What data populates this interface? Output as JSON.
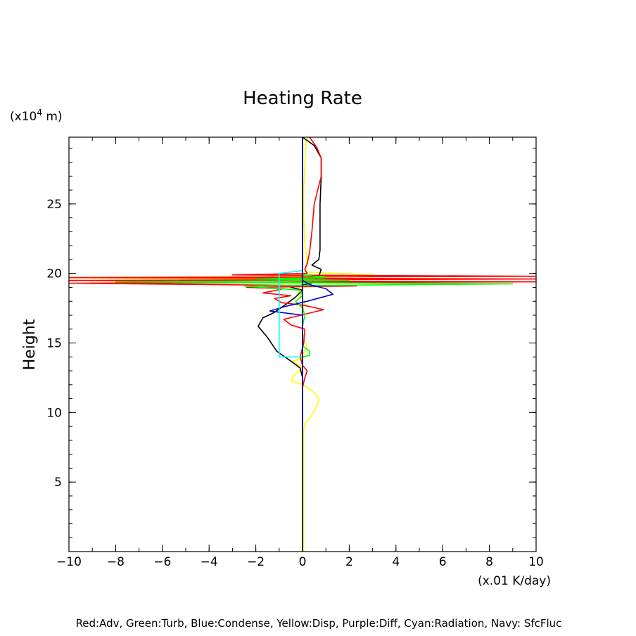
{
  "chart_data": {
    "type": "line",
    "title": "Heating Rate",
    "xlabel": "(x.01 K/day)",
    "ylabel": "Height",
    "yunit_prefix": "(x10",
    "yunit_exp": "4",
    "yunit_suffix": " m)",
    "caption": "Red:Adv, Green:Turb, Blue:Condense, Yellow:Disp, Purple:Diff, Cyan:Radiation, Navy: SfcFluc",
    "xlim": [
      -10,
      10
    ],
    "ylim": [
      0,
      29.8
    ],
    "xticks": [
      -10,
      -8,
      -6,
      -4,
      -2,
      0,
      2,
      4,
      6,
      8,
      10
    ],
    "xtick_labels": [
      "−10",
      "−8",
      "−6",
      "−4",
      "−2",
      "0",
      "2",
      "4",
      "6",
      "8",
      "10"
    ],
    "yticks": [
      5,
      10,
      15,
      20,
      25
    ],
    "ytick_labels": [
      "5",
      "10",
      "15",
      "20",
      "25"
    ],
    "series": [
      {
        "color": "#ffff00",
        "points": [
          [
            0.05,
            0
          ],
          [
            0.05,
            8.7
          ],
          [
            0.1,
            9.2
          ],
          [
            0.4,
            9.8
          ],
          [
            0.6,
            10.4
          ],
          [
            0.7,
            10.9
          ],
          [
            0.6,
            11.3
          ],
          [
            0.3,
            11.7
          ],
          [
            0,
            12
          ],
          [
            -0.5,
            12.3
          ],
          [
            -0.3,
            12.8
          ],
          [
            0,
            13.2
          ],
          [
            -0.4,
            13.7
          ],
          [
            0.1,
            14
          ],
          [
            0.05,
            14.3
          ],
          [
            0.2,
            14.8
          ],
          [
            0.05,
            15.2
          ],
          [
            0,
            16
          ],
          [
            0,
            17
          ],
          [
            0.1,
            18
          ],
          [
            -0.2,
            18.6
          ],
          [
            0.1,
            19
          ],
          [
            0,
            19.3
          ],
          [
            -10,
            19.5
          ],
          [
            3,
            19.6
          ],
          [
            -10,
            19.7
          ],
          [
            0.2,
            19.8
          ],
          [
            3,
            19.9
          ],
          [
            0.1,
            20.1
          ],
          [
            0.2,
            21
          ],
          [
            0.1,
            22
          ],
          [
            0.05,
            24
          ],
          [
            0.05,
            26
          ],
          [
            0.1,
            28
          ],
          [
            0.15,
            29.6
          ],
          [
            0.25,
            29.8
          ]
        ]
      },
      {
        "color": "#000000",
        "points": [
          [
            0,
            8.7
          ],
          [
            0,
            12.5
          ],
          [
            -0.1,
            13.2
          ],
          [
            -0.5,
            13.7
          ],
          [
            -1.1,
            14.4
          ],
          [
            -1.5,
            15.4
          ],
          [
            -1.9,
            16.2
          ],
          [
            -1.7,
            16.8
          ],
          [
            -1.2,
            17.2
          ],
          [
            -0.7,
            17.8
          ],
          [
            -0.3,
            18.3
          ],
          [
            0,
            18.8
          ],
          [
            -0.5,
            19
          ],
          [
            0.4,
            19.3
          ],
          [
            0.7,
            19.8
          ],
          [
            0.8,
            20.3
          ],
          [
            0.4,
            20.6
          ],
          [
            0.7,
            21
          ],
          [
            0.75,
            21.7
          ],
          [
            0.75,
            23
          ],
          [
            0.75,
            25
          ],
          [
            0.8,
            27
          ],
          [
            0.8,
            28.3
          ],
          [
            0.5,
            29.2
          ],
          [
            0,
            29.8
          ]
        ]
      },
      {
        "color": "#ff0000",
        "points": [
          [
            0,
            9.5
          ],
          [
            0,
            10.5
          ],
          [
            0,
            11.8
          ],
          [
            0.1,
            12.5
          ],
          [
            0.2,
            13
          ],
          [
            0,
            13.4
          ],
          [
            -0.1,
            14
          ],
          [
            0.05,
            15
          ],
          [
            0.1,
            16
          ],
          [
            -0.5,
            16.3
          ],
          [
            -0.8,
            16.7
          ],
          [
            0.9,
            17.4
          ],
          [
            0.1,
            17.7
          ],
          [
            -0.9,
            17.9
          ],
          [
            -1.2,
            18.2
          ],
          [
            -0.5,
            18.4
          ],
          [
            -1.7,
            18.6
          ],
          [
            -0.8,
            18.9
          ],
          [
            -2.4,
            19
          ],
          [
            2.3,
            19.1
          ],
          [
            -10,
            19.3
          ],
          [
            10,
            19.4
          ],
          [
            -10,
            19.5
          ],
          [
            10,
            19.6
          ],
          [
            -10,
            19.7
          ],
          [
            10,
            19.8
          ],
          [
            -3,
            19.9
          ],
          [
            0.2,
            20
          ],
          [
            0.1,
            20.3
          ],
          [
            0.2,
            20.7
          ],
          [
            0.3,
            21.5
          ],
          [
            0.4,
            23
          ],
          [
            0.5,
            25
          ],
          [
            0.8,
            27
          ],
          [
            0.8,
            28.3
          ],
          [
            0.6,
            29.1
          ],
          [
            0.3,
            29.8
          ]
        ]
      },
      {
        "color": "#00ff00",
        "points": [
          [
            0,
            14
          ],
          [
            0.3,
            14.1
          ],
          [
            0.3,
            14.4
          ],
          [
            0,
            14.8
          ],
          [
            0,
            15.5
          ],
          [
            0,
            16.2
          ],
          [
            0.1,
            17
          ],
          [
            0,
            17.5
          ],
          [
            -0.3,
            18
          ],
          [
            0,
            18.4
          ],
          [
            -0.1,
            18.8
          ],
          [
            -2.5,
            19.1
          ],
          [
            9,
            19.25
          ],
          [
            -8,
            19.4
          ],
          [
            2,
            19.5
          ],
          [
            -2,
            19.6
          ],
          [
            1,
            19.7
          ],
          [
            0,
            19.9
          ],
          [
            0,
            20.1
          ]
        ]
      },
      {
        "color": "#0000cc",
        "points": [
          [
            0,
            0
          ],
          [
            0,
            14
          ],
          [
            0,
            16
          ],
          [
            0,
            17
          ],
          [
            -1.4,
            17.3
          ],
          [
            -0.8,
            17.6
          ],
          [
            0.2,
            18
          ],
          [
            1.3,
            18.5
          ],
          [
            1,
            18.9
          ],
          [
            0.3,
            19.2
          ],
          [
            0,
            19.5
          ],
          [
            0,
            20
          ],
          [
            0,
            22
          ],
          [
            0,
            25
          ],
          [
            0,
            29.8
          ]
        ]
      },
      {
        "color": "#00ffff",
        "points": [
          [
            0,
            14
          ],
          [
            -1,
            14
          ],
          [
            -1,
            19.9
          ],
          [
            -1,
            20
          ],
          [
            0,
            20.2
          ],
          [
            0,
            20.1
          ]
        ]
      },
      {
        "color": "#000080",
        "points": [
          [
            0,
            0
          ],
          [
            0,
            5
          ],
          [
            0,
            10
          ],
          [
            0,
            15
          ],
          [
            0,
            20
          ],
          [
            0,
            25
          ],
          [
            0,
            29.8
          ]
        ]
      }
    ],
    "grid": false
  }
}
